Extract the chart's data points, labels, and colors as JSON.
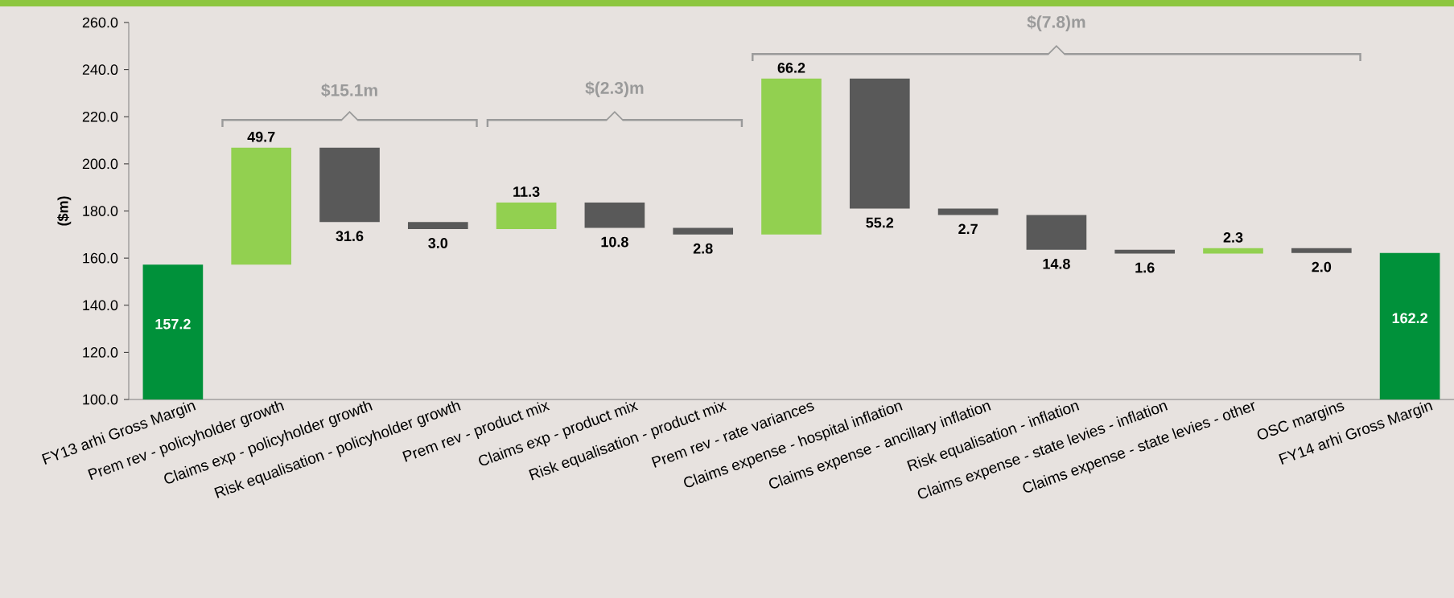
{
  "chart_data": {
    "type": "bar",
    "categories": [
      "FY13 arhi Gross Margin",
      "Prem rev - policyholder growth",
      "Claims exp - policyholder growth",
      "Risk equalisation - policyholder growth",
      "Prem rev - product mix",
      "Claims exp - product mix",
      "Risk equalisation - product mix",
      "Prem rev - rate variances",
      "Claims expense - hospital inflation",
      "Claims expense - ancillary inflation",
      "Risk equalisation - inflation",
      "Claims expense - state levies - inflation",
      "Claims expense - state levies - other",
      "OSC margins",
      "FY14 arhi Gross Margin"
    ],
    "values": [
      157.2,
      49.7,
      -31.6,
      -3.0,
      11.3,
      -10.8,
      -2.8,
      66.2,
      -55.2,
      -2.7,
      -14.8,
      -1.6,
      2.3,
      -2.0,
      162.2
    ],
    "base": [
      null,
      157.2,
      206.9,
      175.3,
      172.3,
      183.6,
      172.8,
      170.0,
      236.2,
      181.0,
      178.3,
      163.5,
      161.9,
      164.2,
      null
    ],
    "value_labels": [
      "157.2",
      "49.7",
      "31.6",
      "3.0",
      "11.3",
      "10.8",
      "2.8",
      "66.2",
      "55.2",
      "2.7",
      "14.8",
      "1.6",
      "2.3",
      "2.0",
      "162.2"
    ],
    "colors": [
      "#00913a",
      "#92d050",
      "#595959",
      "#595959",
      "#92d050",
      "#595959",
      "#595959",
      "#92d050",
      "#595959",
      "#595959",
      "#595959",
      "#595959",
      "#92d050",
      "#595959",
      "#00913a"
    ],
    "ylabel": "($m)",
    "ylim": [
      100,
      260
    ],
    "yticks": [
      {
        "value": 100,
        "label": "100.0"
      },
      {
        "value": 120,
        "label": "120.0"
      },
      {
        "value": 140,
        "label": "140.0"
      },
      {
        "value": 160,
        "label": "160.0"
      },
      {
        "value": 180,
        "label": "180.0"
      },
      {
        "value": 200,
        "label": "200.0"
      },
      {
        "value": 220,
        "label": "220.0"
      },
      {
        "value": 240,
        "label": "240.0"
      },
      {
        "value": 260,
        "label": "260.0"
      }
    ],
    "annotations": [
      "$15.1m",
      "$(2.3)m",
      "$(7.8)m"
    ]
  }
}
